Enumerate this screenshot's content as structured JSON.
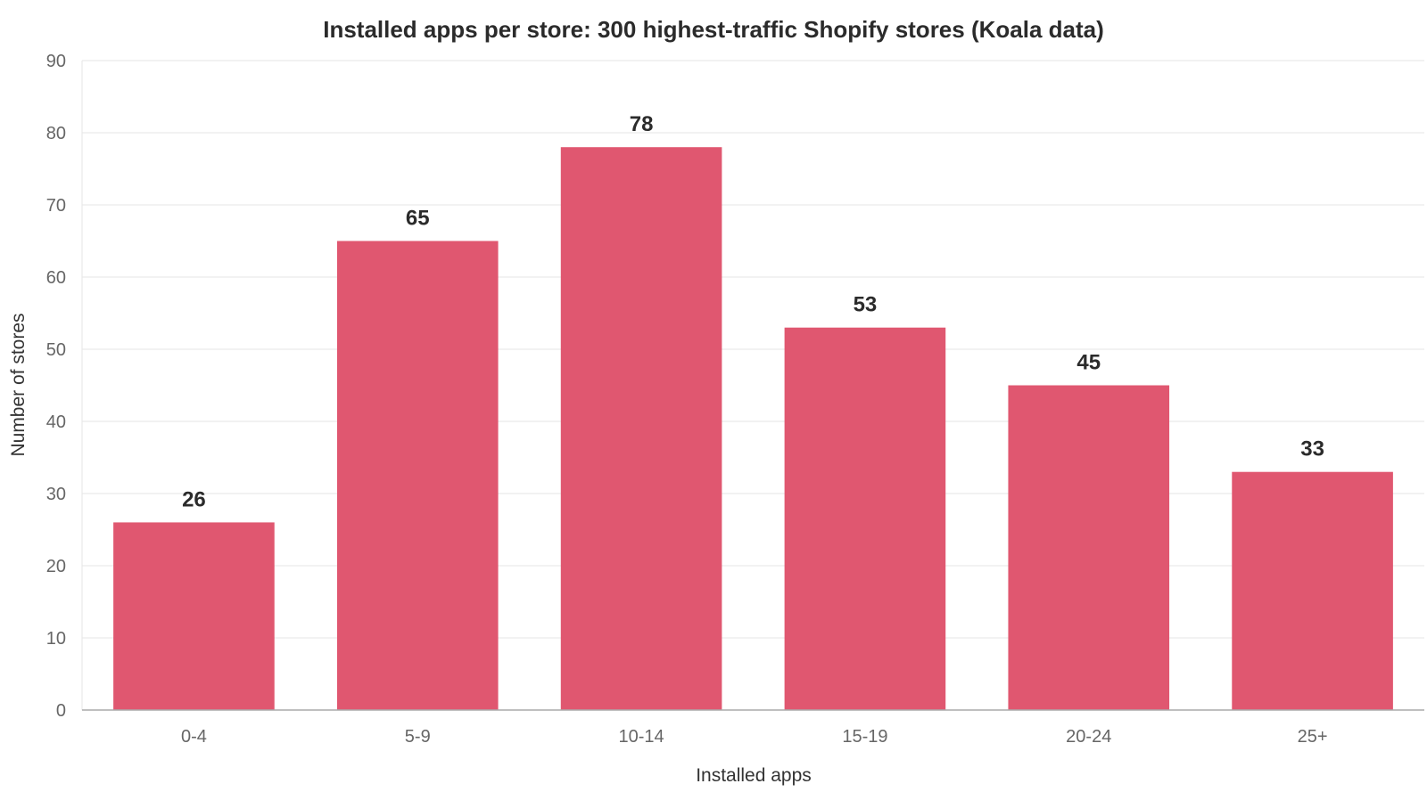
{
  "chart_data": {
    "type": "bar",
    "title": "Installed apps per store: 300 highest-traffic Shopify stores (Koala data)",
    "xlabel": "Installed apps",
    "ylabel": "Number of stores",
    "categories": [
      "0-4",
      "5-9",
      "10-14",
      "15-19",
      "20-24",
      "25+"
    ],
    "values": [
      26,
      65,
      78,
      53,
      45,
      33
    ],
    "ylim": [
      0,
      90
    ],
    "yticks": [
      0,
      10,
      20,
      30,
      40,
      50,
      60,
      70,
      80,
      90
    ],
    "grid": true,
    "legend": "none",
    "data_labels": true,
    "bar_color": "#e05770"
  }
}
